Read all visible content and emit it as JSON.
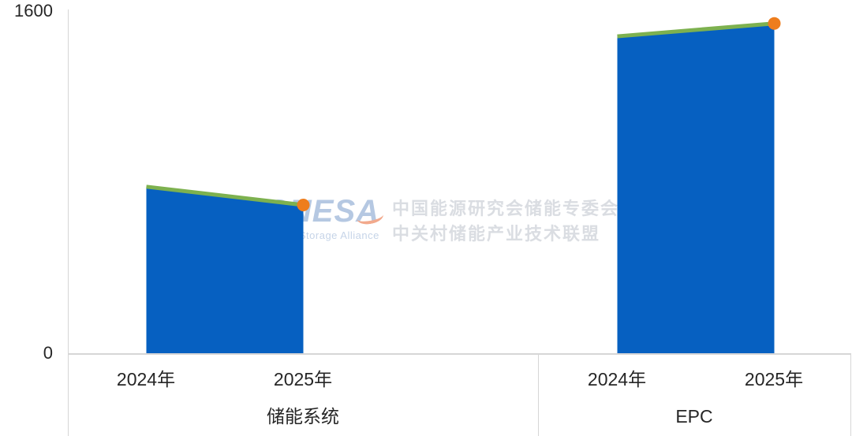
{
  "y_axis": {
    "max_label": "1600",
    "min_label": "0"
  },
  "watermark": {
    "logo_text": "CNESA",
    "logo_subtext": "China Energy Storage Alliance",
    "cn_line1": "中国能源研究会储能专委会",
    "cn_line2": "中关村储能产业技术联盟"
  },
  "colors": {
    "area_fill": "#0660c1",
    "trend_line": "#7db14f",
    "endpoint_marker": "#ee7d1d",
    "axis_line": "#d6d6d6",
    "label_text": "#262626",
    "watermark_logo": "#b5c8e2",
    "watermark_cn": "#dadde2"
  },
  "chart_data": {
    "type": "area",
    "title": "",
    "xlabel": "",
    "ylabel": "",
    "ylim": [
      0,
      1600
    ],
    "y_ticks": [
      "0",
      "1600"
    ],
    "grid": false,
    "legend": "none",
    "series_style": "blue area with green top trend line and orange marker on last point of each group",
    "groups": [
      {
        "label": "储能系统",
        "categories": [
          "2024年",
          "2025年"
        ],
        "values": [
          775,
          690
        ]
      },
      {
        "label": "EPC",
        "categories": [
          "2024年",
          "2025年"
        ],
        "values": [
          1475,
          1535
        ]
      }
    ]
  }
}
